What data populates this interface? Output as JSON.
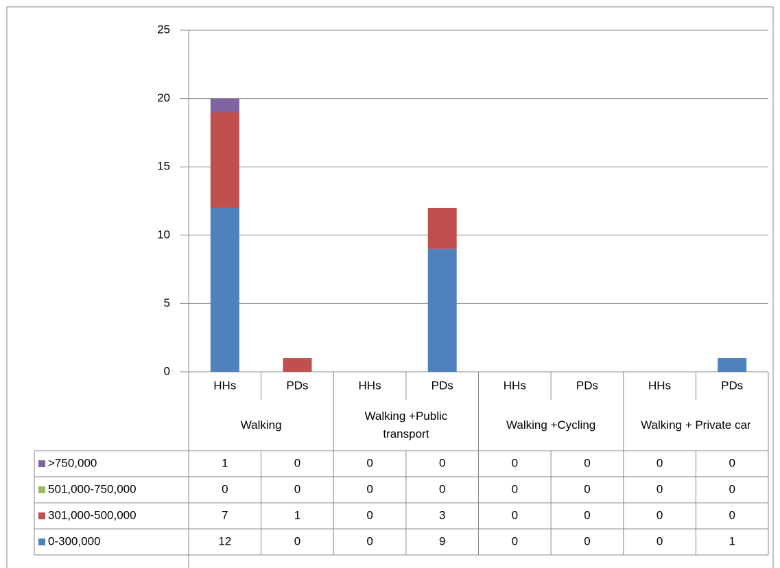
{
  "chart_data": {
    "type": "stacked_bar",
    "categories": [
      "HHs",
      "PDs",
      "HHs",
      "PDs",
      "HHs",
      "PDs",
      "HHs",
      "PDs"
    ],
    "groups": [
      "Walking",
      "Walking +Public transport",
      "Walking +Cycling",
      "Walking + Private car"
    ],
    "series": [
      {
        "name": "0-300,000",
        "color": "#4f81bd",
        "values": [
          12,
          0,
          0,
          9,
          0,
          0,
          0,
          1
        ]
      },
      {
        "name": "301,000-500,000",
        "color": "#c0504d",
        "values": [
          7,
          1,
          0,
          3,
          0,
          0,
          0,
          0
        ]
      },
      {
        "name": "501,000-750,000",
        "color": "#9bbb59",
        "values": [
          0,
          0,
          0,
          0,
          0,
          0,
          0,
          0
        ]
      },
      {
        "name": ">750,000",
        "color": "#8064a2",
        "values": [
          1,
          0,
          0,
          0,
          0,
          0,
          0,
          0
        ]
      }
    ],
    "ylim": [
      0,
      25
    ],
    "yticks": [
      0,
      5,
      10,
      15,
      20,
      25
    ],
    "grid": true,
    "data_table": true
  }
}
